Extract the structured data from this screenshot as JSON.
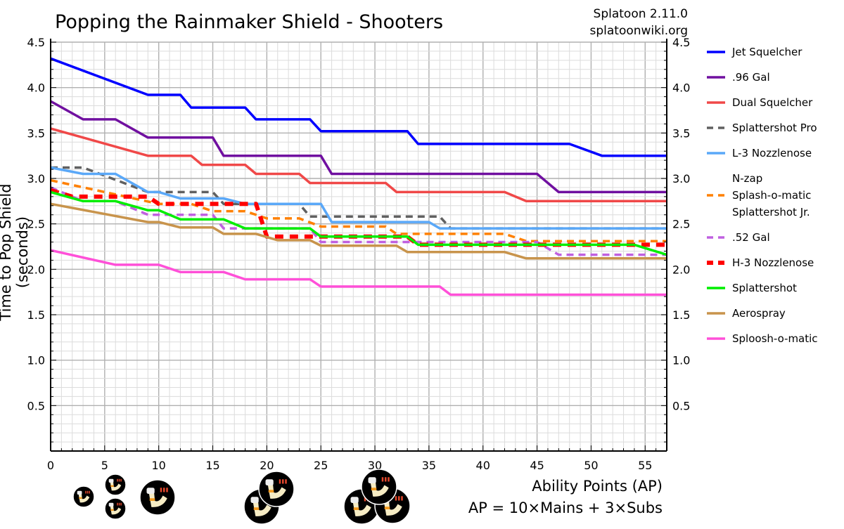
{
  "header": {
    "title": "Popping the Rainmaker Shield - Shooters",
    "version": "Splatoon 2.11.0",
    "site": "splatoonwiki.org"
  },
  "footer": {
    "xlabel": "Ability Points (AP)",
    "formula": "AP = 10×Mains + 3×Subs",
    "ability_icon": "flexing-arm-ability-icon"
  },
  "chart_data": {
    "type": "line",
    "title": "Popping the Rainmaker Shield - Shooters",
    "xlabel": "Ability Points (AP)",
    "ylabel": "Time to Pop Shield (seconds)",
    "xlim": [
      0,
      57
    ],
    "ylim": [
      0,
      4.5
    ],
    "xticks": [
      "0",
      "5",
      "10",
      "15",
      "20",
      "25",
      "30",
      "35",
      "40",
      "45",
      "50",
      "55"
    ],
    "yticks": [
      "0.5",
      "1.0",
      "1.5",
      "2.0",
      "2.5",
      "3.0",
      "3.5",
      "4.0",
      "4.5"
    ],
    "grid": true,
    "legend": "right",
    "series": [
      {
        "name": "Jet Squelcher",
        "color": "#0000ff",
        "dash": false,
        "points": [
          [
            0,
            4.32
          ],
          [
            9,
            3.92
          ],
          [
            12,
            3.92
          ],
          [
            13,
            3.78
          ],
          [
            18,
            3.78
          ],
          [
            19,
            3.65
          ],
          [
            24,
            3.65
          ],
          [
            25,
            3.52
          ],
          [
            33,
            3.52
          ],
          [
            34,
            3.38
          ],
          [
            48,
            3.38
          ],
          [
            51,
            3.25
          ],
          [
            57,
            3.25
          ]
        ]
      },
      {
        "name": ".96 Gal",
        "color": "#7010a0",
        "dash": false,
        "points": [
          [
            0,
            3.85
          ],
          [
            3,
            3.65
          ],
          [
            6,
            3.65
          ],
          [
            9,
            3.45
          ],
          [
            15,
            3.45
          ],
          [
            16,
            3.25
          ],
          [
            25,
            3.25
          ],
          [
            26,
            3.05
          ],
          [
            45,
            3.05
          ],
          [
            47,
            2.85
          ],
          [
            57,
            2.85
          ]
        ]
      },
      {
        "name": "Dual Squelcher",
        "color": "#f04848",
        "dash": false,
        "points": [
          [
            0,
            3.55
          ],
          [
            9,
            3.25
          ],
          [
            13,
            3.25
          ],
          [
            14,
            3.15
          ],
          [
            18,
            3.15
          ],
          [
            19,
            3.05
          ],
          [
            23,
            3.05
          ],
          [
            24,
            2.95
          ],
          [
            31,
            2.95
          ],
          [
            32,
            2.85
          ],
          [
            42,
            2.85
          ],
          [
            44,
            2.75
          ],
          [
            57,
            2.75
          ]
        ]
      },
      {
        "name": "Splattershot Pro",
        "color": "#606060",
        "dash": true,
        "points": [
          [
            0,
            3.12
          ],
          [
            3,
            3.12
          ],
          [
            9,
            2.85
          ],
          [
            15,
            2.85
          ],
          [
            16,
            2.72
          ],
          [
            23,
            2.72
          ],
          [
            24,
            2.58
          ],
          [
            36,
            2.58
          ],
          [
            37,
            2.45
          ],
          [
            57,
            2.45
          ]
        ]
      },
      {
        "name": "L-3 Nozzlenose",
        "color": "#5aa8f8",
        "dash": false,
        "points": [
          [
            0,
            3.12
          ],
          [
            3,
            3.05
          ],
          [
            6,
            3.05
          ],
          [
            9,
            2.85
          ],
          [
            10,
            2.85
          ],
          [
            12,
            2.78
          ],
          [
            16,
            2.78
          ],
          [
            18,
            2.72
          ],
          [
            25,
            2.72
          ],
          [
            26,
            2.52
          ],
          [
            35,
            2.52
          ],
          [
            36,
            2.45
          ],
          [
            57,
            2.45
          ]
        ]
      },
      {
        "name": "N-zap\nSplash-o-matic\nSplattershot Jr.",
        "color": "#ff8000",
        "dash": true,
        "points": [
          [
            0,
            2.98
          ],
          [
            10,
            2.72
          ],
          [
            13,
            2.72
          ],
          [
            15,
            2.64
          ],
          [
            18,
            2.64
          ],
          [
            20,
            2.56
          ],
          [
            23,
            2.56
          ],
          [
            25,
            2.47
          ],
          [
            31,
            2.47
          ],
          [
            32,
            2.39
          ],
          [
            42,
            2.39
          ],
          [
            44,
            2.31
          ],
          [
            57,
            2.31
          ]
        ]
      },
      {
        "name": ".52 Gal",
        "color": "#c060e0",
        "dash": true,
        "points": [
          [
            0,
            2.9
          ],
          [
            3,
            2.75
          ],
          [
            6,
            2.75
          ],
          [
            9,
            2.6
          ],
          [
            15,
            2.6
          ],
          [
            16,
            2.45
          ],
          [
            24,
            2.45
          ],
          [
            25,
            2.3
          ],
          [
            45,
            2.3
          ],
          [
            47,
            2.16
          ],
          [
            57,
            2.16
          ]
        ]
      },
      {
        "name": "H-3 Nozzlenose",
        "color": "#ff0000",
        "dash": true,
        "thick": true,
        "points": [
          [
            0,
            2.87
          ],
          [
            2,
            2.8
          ],
          [
            9,
            2.8
          ],
          [
            10,
            2.72
          ],
          [
            19,
            2.72
          ],
          [
            20,
            2.36
          ],
          [
            33,
            2.36
          ],
          [
            34,
            2.27
          ],
          [
            57,
            2.27
          ]
        ]
      },
      {
        "name": "Splattershot",
        "color": "#00ee00",
        "dash": false,
        "points": [
          [
            0,
            2.85
          ],
          [
            3,
            2.75
          ],
          [
            6,
            2.75
          ],
          [
            9,
            2.65
          ],
          [
            10,
            2.65
          ],
          [
            12,
            2.55
          ],
          [
            16,
            2.55
          ],
          [
            18,
            2.45
          ],
          [
            24,
            2.45
          ],
          [
            25,
            2.36
          ],
          [
            33,
            2.36
          ],
          [
            34,
            2.27
          ],
          [
            54,
            2.27
          ],
          [
            57,
            2.16
          ]
        ]
      },
      {
        "name": "Aerospray",
        "color": "#c8944c",
        "dash": false,
        "points": [
          [
            0,
            2.72
          ],
          [
            9,
            2.52
          ],
          [
            10,
            2.52
          ],
          [
            12,
            2.46
          ],
          [
            15,
            2.46
          ],
          [
            16,
            2.39
          ],
          [
            19,
            2.39
          ],
          [
            21,
            2.32
          ],
          [
            24,
            2.32
          ],
          [
            25,
            2.26
          ],
          [
            32,
            2.26
          ],
          [
            33,
            2.19
          ],
          [
            42,
            2.19
          ],
          [
            44,
            2.12
          ],
          [
            57,
            2.12
          ]
        ]
      },
      {
        "name": "Sploosh-o-matic",
        "color": "#ff50d8",
        "dash": false,
        "points": [
          [
            0,
            2.21
          ],
          [
            6,
            2.05
          ],
          [
            10,
            2.05
          ],
          [
            12,
            1.97
          ],
          [
            16,
            1.97
          ],
          [
            18,
            1.89
          ],
          [
            24,
            1.89
          ],
          [
            25,
            1.81
          ],
          [
            36,
            1.81
          ],
          [
            37,
            1.72
          ],
          [
            57,
            1.72
          ]
        ]
      }
    ]
  }
}
